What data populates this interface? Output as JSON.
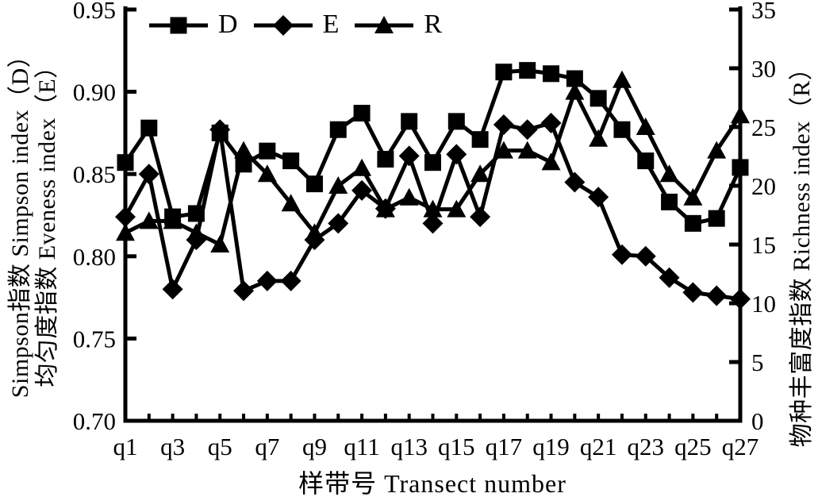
{
  "chart_data": {
    "type": "line",
    "x_axis": {
      "title": "样带号 Transect number",
      "categories": [
        "q1",
        "q2",
        "q3",
        "q4",
        "q5",
        "q6",
        "q7",
        "q8",
        "q9",
        "q10",
        "q11",
        "q12",
        "q13",
        "q14",
        "q15",
        "q16",
        "q17",
        "q18",
        "q19",
        "q20",
        "q21",
        "q22",
        "q23",
        "q24",
        "q25",
        "q26",
        "q27"
      ],
      "shown_tick_labels": [
        "q1",
        "q3",
        "q5",
        "q7",
        "q9",
        "q11",
        "q13",
        "q15",
        "q17",
        "q19",
        "q21",
        "q23",
        "q25",
        "q27"
      ]
    },
    "left_axis": {
      "title_line_outer": "Simpson指数 Simpson index（D）",
      "title_line_inner": "均匀度指数 Eveness index（E）",
      "min": 0.7,
      "max": 0.95,
      "tick_step": 0.05,
      "tick_labels": [
        "0.95",
        "0.90",
        "0.85",
        "0.80",
        "0.75",
        "0.70"
      ]
    },
    "right_axis": {
      "title": "物种丰富度指数 Richness index（R）",
      "min": 0,
      "max": 35,
      "tick_step": 5,
      "tick_labels": [
        "35",
        "30",
        "25",
        "20",
        "15",
        "10",
        "5",
        "0"
      ]
    },
    "legend": [
      {
        "label": "D",
        "marker": "square"
      },
      {
        "label": "E",
        "marker": "diamond"
      },
      {
        "label": "R",
        "marker": "triangle"
      }
    ],
    "series": [
      {
        "name": "D",
        "axis": "left",
        "marker": "square",
        "values": [
          0.857,
          0.878,
          0.824,
          0.826,
          0.875,
          0.856,
          0.864,
          0.858,
          0.844,
          0.877,
          0.887,
          0.859,
          0.882,
          0.857,
          0.882,
          0.871,
          0.912,
          0.913,
          0.911,
          0.908,
          0.896,
          0.877,
          0.858,
          0.833,
          0.82,
          0.823,
          0.854
        ]
      },
      {
        "name": "E",
        "axis": "left",
        "marker": "diamond",
        "values": [
          0.824,
          0.85,
          0.78,
          0.81,
          0.877,
          0.779,
          0.785,
          0.785,
          0.81,
          0.82,
          0.84,
          0.829,
          0.861,
          0.82,
          0.862,
          0.824,
          0.88,
          0.877,
          0.881,
          0.845,
          0.836,
          0.801,
          0.8,
          0.787,
          0.778,
          0.776,
          0.774
        ]
      },
      {
        "name": "R",
        "axis": "right",
        "marker": "triangle",
        "values": [
          16,
          17,
          17,
          16,
          15,
          23,
          21,
          18.5,
          16,
          20,
          21.5,
          18,
          19,
          18,
          18,
          21,
          23,
          23,
          22,
          28,
          24,
          29,
          25,
          21,
          19,
          23,
          26
        ]
      }
    ],
    "line_color": "#000000",
    "grid": false,
    "legend_position": "top-inside"
  }
}
